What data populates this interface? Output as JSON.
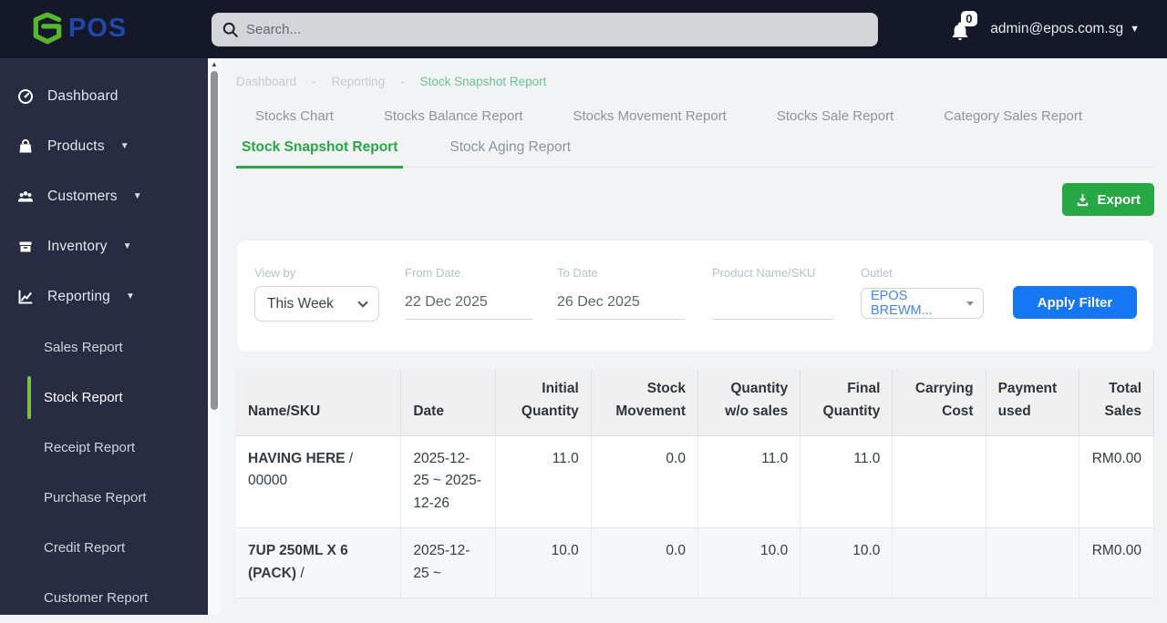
{
  "topbar": {
    "logo_text": "POS",
    "search_placeholder": "Search...",
    "notification_count": "0",
    "user_email": "admin@epos.com.sg"
  },
  "sidebar": {
    "items": [
      {
        "label": "Dashboard",
        "icon": "gauge-icon",
        "has_caret": false
      },
      {
        "label": "Products",
        "icon": "bag-icon",
        "has_caret": true
      },
      {
        "label": "Customers",
        "icon": "users-icon",
        "has_caret": true
      },
      {
        "label": "Inventory",
        "icon": "box-icon",
        "has_caret": true
      },
      {
        "label": "Reporting",
        "icon": "chart-icon",
        "has_caret": true
      }
    ],
    "sub_items": [
      {
        "label": "Sales Report",
        "active": false
      },
      {
        "label": "Stock Report",
        "active": true
      },
      {
        "label": "Receipt Report",
        "active": false
      },
      {
        "label": "Purchase Report",
        "active": false
      },
      {
        "label": "Credit Report",
        "active": false
      },
      {
        "label": "Customer Report",
        "active": false
      }
    ]
  },
  "breadcrumb": {
    "separator": "-",
    "items": [
      "Dashboard",
      "Reporting",
      "Stock Snapshot Report"
    ]
  },
  "tabs": {
    "row1": [
      "Stocks Chart",
      "Stocks Balance Report",
      "Stocks Movement Report",
      "Stocks Sale Report",
      "Category Sales Report"
    ],
    "row2": [
      {
        "label": "Stock Snapshot Report",
        "active": true
      },
      {
        "label": "Stock Aging Report",
        "active": false
      }
    ]
  },
  "toolbar": {
    "export_label": "Export"
  },
  "filters": {
    "view_by": {
      "label": "View by",
      "value": "This Week"
    },
    "from_date": {
      "label": "From Date",
      "value": "22 Dec 2025"
    },
    "to_date": {
      "label": "To Date",
      "value": "26 Dec 2025"
    },
    "product": {
      "label": "Product Name/SKU",
      "value": ""
    },
    "outlet": {
      "label": "Outlet",
      "value": "EPOS BREWM..."
    },
    "apply_label": "Apply Filter"
  },
  "table": {
    "columns": [
      {
        "label": "Name/SKU",
        "align": "left"
      },
      {
        "label": "Date",
        "align": "left"
      },
      {
        "label": "Initial Quantity",
        "align": "right"
      },
      {
        "label": "Stock Movement",
        "align": "right"
      },
      {
        "label": "Quantity w/o sales",
        "align": "right"
      },
      {
        "label": "Final Quantity",
        "align": "right"
      },
      {
        "label": "Carrying Cost",
        "align": "right"
      },
      {
        "label": "Payment used",
        "align": "left"
      },
      {
        "label": "Total Sales",
        "align": "right"
      }
    ],
    "rows": [
      {
        "name": "HAVING HERE",
        "sku": "00000",
        "date": "2025-12-25 ~ 2025-12-26",
        "initial_quantity": "11.0",
        "stock_movement": "0.0",
        "quantity_wo_sales": "11.0",
        "final_quantity": "11.0",
        "carrying_cost": "",
        "payment_used": "",
        "total_sales": "RM0.00"
      },
      {
        "name": "7UP 250ML X 6 (PACK)",
        "sku": "",
        "date": "2025-12-25 ~",
        "initial_quantity": "10.0",
        "stock_movement": "0.0",
        "quantity_wo_sales": "10.0",
        "final_quantity": "10.0",
        "carrying_cost": "",
        "payment_used": "",
        "total_sales": "RM0.00"
      }
    ]
  },
  "colors": {
    "topbar_bg": "#141829",
    "sidebar_bg": "#272c42",
    "accent_green": "#28a745",
    "active_bar_green": "#7ec242",
    "breadcrumb_green": "#6ec295",
    "accent_blue": "#1677f2",
    "outlet_blue": "#4284f4",
    "logo_blue": "#2148a8",
    "logo_green": "#56b72f"
  }
}
